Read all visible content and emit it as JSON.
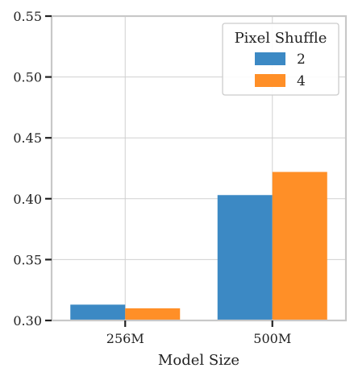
{
  "chart_data": {
    "type": "bar",
    "title": "",
    "xlabel": "Model Size",
    "ylabel": "",
    "categories": [
      "256M",
      "500M"
    ],
    "series": [
      {
        "name": "2",
        "values": [
          0.313,
          0.403
        ],
        "color": "#3c89c4"
      },
      {
        "name": "4",
        "values": [
          0.31,
          0.422
        ],
        "color": "#ff8f27"
      }
    ],
    "ylim": [
      0.3,
      0.55
    ],
    "yticks": [
      0.3,
      0.35,
      0.4,
      0.45,
      0.5,
      0.55
    ],
    "ytick_labels": [
      "0.30",
      "0.35",
      "0.40",
      "0.45",
      "0.50",
      "0.55"
    ],
    "grid": true,
    "legend": {
      "title": "Pixel Shuffle",
      "placement": "top-right"
    }
  }
}
